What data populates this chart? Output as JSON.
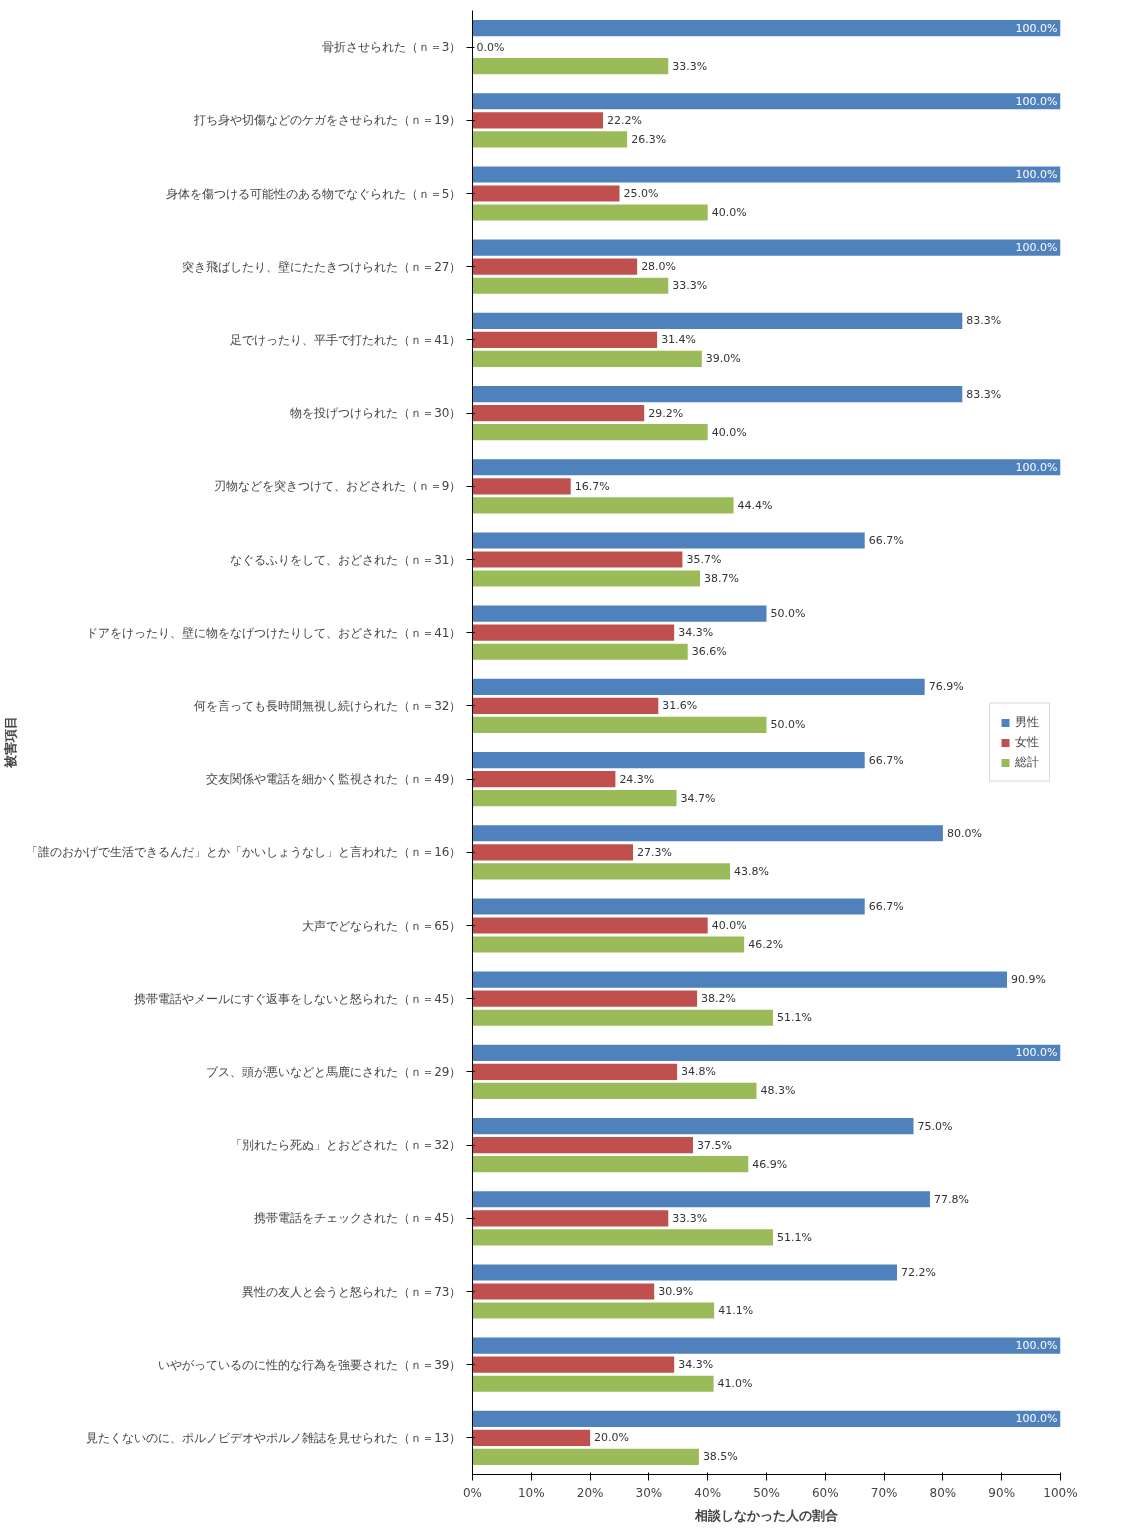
{
  "chart_data": {
    "type": "bar",
    "orientation": "horizontal",
    "xlabel": "相談しなかった人の割合",
    "ylabel": "被害項目",
    "categories": [
      "骨折させられた（ｎ＝3）",
      "打ち身や切傷などのケガをさせられた（ｎ＝19）",
      "身体を傷つける可能性のある物でなぐられた（ｎ＝5）",
      "突き飛ばしたり、壁にたたきつけられた（ｎ＝27）",
      "足でけったり、平手で打たれた（ｎ＝41）",
      "物を投げつけられた（ｎ＝30）",
      "刃物などを突きつけて、おどされた（ｎ＝9）",
      "なぐるふりをして、おどされた（ｎ＝31）",
      "ドアをけったり、壁に物をなげつけたりして、おどされた（ｎ＝41）",
      "何を言っても長時間無視し続けられた（ｎ＝32）",
      "交友関係や電話を細かく監視された（ｎ＝49）",
      "「誰のおかげで生活できるんだ」とか「かいしょうなし」と言われた（ｎ＝16）",
      "大声でどなられた（ｎ＝65）",
      "携帯電話やメールにすぐ返事をしないと怒られた（ｎ＝45）",
      "ブス、頭が悪いなどと馬鹿にされた（ｎ＝29）",
      "「別れたら死ぬ」とおどされた（ｎ＝32）",
      "携帯電話をチェックされた（ｎ＝45）",
      "異性の友人と会うと怒られた（ｎ＝73）",
      "いやがっているのに性的な行為を強要された（ｎ＝39）",
      "見たくないのに、ポルノビデオやポルノ雑誌を見せられた（ｎ＝13）"
    ],
    "series": [
      {
        "name": "男性",
        "color": "#4f81bd",
        "values": [
          100,
          100,
          100,
          100,
          83.3,
          83.3,
          100,
          66.7,
          50.0,
          76.9,
          66.7,
          80.0,
          66.7,
          90.9,
          100,
          75.0,
          77.8,
          72.2,
          100,
          100
        ],
        "value_labels": [
          "100.0%",
          "100.0%",
          "100.0%",
          "100.0%",
          "83.3%",
          "83.3%",
          "100.0%",
          "66.7%",
          "50.0%",
          "76.9%",
          "66.7%",
          "80.0%",
          "66.7%",
          "90.9%",
          "100.0%",
          "75.0%",
          "77.8%",
          "72.2%",
          "100.0%",
          "100.0%"
        ]
      },
      {
        "name": "女性",
        "color": "#c0504d",
        "values": [
          0,
          22.2,
          25.0,
          28.0,
          31.4,
          29.2,
          16.7,
          35.7,
          34.3,
          31.6,
          24.3,
          27.3,
          40.0,
          38.2,
          34.8,
          37.5,
          33.3,
          30.9,
          34.3,
          20.0
        ],
        "value_labels": [
          "0.0%",
          "22.2%",
          "25.0%",
          "28.0%",
          "31.4%",
          "29.2%",
          "16.7%",
          "35.7%",
          "34.3%",
          "31.6%",
          "24.3%",
          "27.3%",
          "40.0%",
          "38.2%",
          "34.8%",
          "37.5%",
          "33.3%",
          "30.9%",
          "34.3%",
          "20.0%"
        ]
      },
      {
        "name": "総計",
        "color": "#9bbb59",
        "values": [
          33.3,
          26.3,
          40.0,
          33.3,
          39.0,
          40.0,
          44.4,
          38.7,
          36.6,
          50.0,
          34.7,
          43.8,
          46.2,
          51.1,
          48.3,
          46.9,
          51.1,
          41.1,
          41.0,
          38.5
        ],
        "value_labels": [
          "33.3%",
          "26.3%",
          "40.0%",
          "33.3%",
          "39.0%",
          "40.0%",
          "44.4%",
          "38.7%",
          "36.6%",
          "50.0%",
          "34.7%",
          "43.8%",
          "46.2%",
          "51.1%",
          "48.3%",
          "46.9%",
          "51.1%",
          "41.1%",
          "41.0%",
          "38.5%"
        ]
      }
    ],
    "xlim": [
      0,
      100
    ],
    "xticks": [
      {
        "value": 0,
        "label": "0%"
      },
      {
        "value": 10,
        "label": "10%"
      },
      {
        "value": 20,
        "label": "20%"
      },
      {
        "value": 30,
        "label": "30%"
      },
      {
        "value": 40,
        "label": "40%"
      },
      {
        "value": 50,
        "label": "50%"
      },
      {
        "value": 60,
        "label": "60%"
      },
      {
        "value": 70,
        "label": "70%"
      },
      {
        "value": 80,
        "label": "80%"
      },
      {
        "value": 90,
        "label": "90%"
      },
      {
        "value": 100,
        "label": "100%"
      }
    ],
    "legend": "right"
  }
}
